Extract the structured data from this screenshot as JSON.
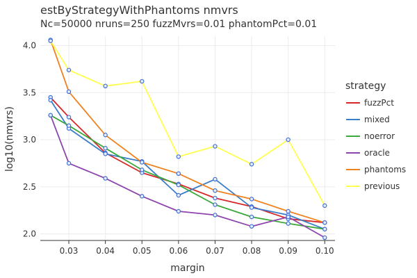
{
  "chart_data": {
    "type": "line",
    "title": "estByStrategyWithPhantoms nmvrs",
    "subtitle": "Nc=50000 nruns=250 fuzzMvrs=0.01 phantomPct=0.01",
    "xlabel": "margin",
    "ylabel": "log10(nmvrs)",
    "xlim": [
      0.0222,
      0.1028
    ],
    "ylim": [
      1.93,
      4.1
    ],
    "x_ticks": [
      0.03,
      0.04,
      0.05,
      0.06,
      0.07,
      0.08,
      0.09,
      0.1
    ],
    "x_tick_labels": [
      "0.03",
      "0.04",
      "0.05",
      "0.06",
      "0.07",
      "0.08",
      "0.09",
      "0.10"
    ],
    "y_ticks": [
      2.0,
      2.5,
      3.0,
      3.5,
      4.0
    ],
    "y_tick_labels": [
      "2.0",
      "2.5",
      "3.0",
      "3.5",
      "4.0"
    ],
    "grid": true,
    "legend_title": "strategy",
    "legend_position": "right",
    "x": [
      0.025,
      0.03,
      0.04,
      0.05,
      0.06,
      0.07,
      0.08,
      0.09,
      0.1
    ],
    "series": [
      {
        "name": "fuzzPct",
        "color": "#d62728",
        "values": [
          3.45,
          3.24,
          2.86,
          2.65,
          2.53,
          2.38,
          2.29,
          2.16,
          2.12
        ]
      },
      {
        "name": "mixed",
        "color": "#3a7dc9",
        "values": [
          3.42,
          3.12,
          2.85,
          2.77,
          2.41,
          2.58,
          2.28,
          2.2,
          2.05
        ]
      },
      {
        "name": "noerror",
        "color": "#3aa83a",
        "values": [
          3.26,
          3.15,
          2.91,
          2.68,
          2.52,
          2.31,
          2.18,
          2.11,
          2.05
        ]
      },
      {
        "name": "oracle",
        "color": "#8e44ad",
        "values": [
          3.26,
          2.75,
          2.59,
          2.4,
          2.24,
          2.2,
          2.08,
          2.18,
          1.96
        ]
      },
      {
        "name": "phantoms",
        "color": "#f0821e",
        "values": [
          4.06,
          3.51,
          3.05,
          2.76,
          2.64,
          2.46,
          2.37,
          2.24,
          2.12
        ]
      },
      {
        "name": "previous",
        "color": "#ffff4d",
        "values": [
          4.05,
          3.74,
          3.57,
          3.62,
          2.82,
          2.93,
          2.74,
          3.0,
          2.3
        ]
      }
    ],
    "marker_color": "#3f6fd1"
  }
}
